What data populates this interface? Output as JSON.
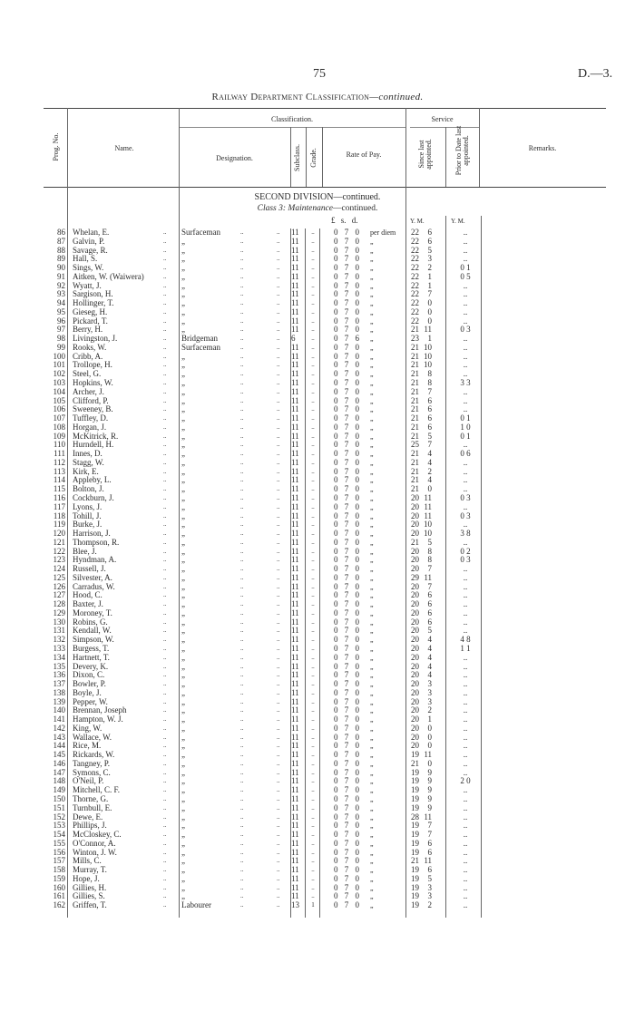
{
  "page": {
    "number": "75",
    "reference": "D.—3."
  },
  "title": {
    "main": "Railway Department Classification",
    "suffix": "—continued."
  },
  "headers": {
    "prog_no": "Prog. No.",
    "name": "Name.",
    "classification": "Classification.",
    "designation": "Designation.",
    "subclass": "Subclass.",
    "grade": "Grade.",
    "rate_of_pay": "Rate of Pay.",
    "service": "Service",
    "since_last": "Since last appointed.",
    "prior": "Prior to Date last appointed.",
    "remarks": "Remarks."
  },
  "section": {
    "division": "SECOND DIVISION—continued.",
    "class_label": "Class 3:",
    "class_name": "Maintenance",
    "class_suffix": "—continued."
  },
  "units": {
    "lsd": "£ s. d.",
    "since_ym": "Y. M.",
    "prior_ym": "Y. M."
  },
  "leader": "..",
  "rows": [
    [
      "86",
      "Whelan, E.",
      "Surfaceman",
      "11",
      "..",
      "0 7 0",
      "per diem",
      "22",
      "6",
      ".."
    ],
    [
      "87",
      "Galvin, P.",
      "„",
      "11",
      "..",
      "0 7 0",
      "„",
      "22",
      "6",
      ".."
    ],
    [
      "88",
      "Savage, R.",
      "„",
      "11",
      "..",
      "0 7 0",
      "„",
      "22",
      "5",
      ".."
    ],
    [
      "89",
      "Hall, S.",
      "„",
      "11",
      "..",
      "0 7 0",
      "„",
      "22",
      "3",
      ".."
    ],
    [
      "90",
      "Sings, W.",
      "„",
      "11",
      "..",
      "0 7 0",
      "„",
      "22",
      "2",
      "0 1"
    ],
    [
      "91",
      "Aitken, W. (Waiwera)",
      "„",
      "11",
      "..",
      "0 7 0",
      "„",
      "22",
      "1",
      "0 5"
    ],
    [
      "92",
      "Wyatt, J.",
      "„",
      "11",
      "..",
      "0 7 0",
      "„",
      "22",
      "1",
      ".."
    ],
    [
      "93",
      "Sargison, H.",
      "„",
      "11",
      "..",
      "0 7 0",
      "„",
      "22",
      "7",
      ".."
    ],
    [
      "94",
      "Hollinger, T.",
      "„",
      "11",
      "..",
      "0 7 0",
      "„",
      "22",
      "0",
      ".."
    ],
    [
      "95",
      "Gieseg, H.",
      "„",
      "11",
      "..",
      "0 7 0",
      "„",
      "22",
      "0",
      ".."
    ],
    [
      "96",
      "Pickard, T.",
      "„",
      "11",
      "..",
      "0 7 0",
      "„",
      "22",
      "0",
      ".."
    ],
    [
      "97",
      "Berry, H.",
      "„",
      "11",
      "..",
      "0 7 0",
      "„",
      "21",
      "11",
      "0 3"
    ],
    [
      "98",
      "Livingston, J.",
      "Bridgeman",
      "6",
      "..",
      "0 7 6",
      "„",
      "23",
      "1",
      ".."
    ],
    [
      "99",
      "Rooks, W.",
      "Surfaceman",
      "11",
      "..",
      "0 7 0",
      "„",
      "21",
      "10",
      ".."
    ],
    [
      "100",
      "Cribb, A.",
      "„",
      "11",
      "..",
      "0 7 0",
      "„",
      "21",
      "10",
      ".."
    ],
    [
      "101",
      "Trollope, H.",
      "„",
      "11",
      "..",
      "0 7 0",
      "„",
      "21",
      "10",
      ".."
    ],
    [
      "102",
      "Steel, G.",
      "„",
      "11",
      "..",
      "0 7 0",
      "„",
      "21",
      "8",
      ".."
    ],
    [
      "103",
      "Hopkins, W.",
      "„",
      "11",
      "..",
      "0 7 0",
      "„",
      "21",
      "8",
      "3 3"
    ],
    [
      "104",
      "Archer, J.",
      "„",
      "11",
      "..",
      "0 7 0",
      "„",
      "21",
      "7",
      ".."
    ],
    [
      "105",
      "Clifford, P.",
      "„",
      "11",
      "..",
      "0 7 0",
      "„",
      "21",
      "6",
      ".."
    ],
    [
      "106",
      "Sweeney, B.",
      "„",
      "11",
      "..",
      "0 7 0",
      "„",
      "21",
      "6",
      ".."
    ],
    [
      "107",
      "Tuffley, D.",
      "„",
      "11",
      "..",
      "0 7 0",
      "„",
      "21",
      "6",
      "0 1"
    ],
    [
      "108",
      "Horgan, J.",
      "„",
      "11",
      "..",
      "0 7 0",
      "„",
      "21",
      "6",
      "1 0"
    ],
    [
      "109",
      "McKitrick, R.",
      "„",
      "11",
      "..",
      "0 7 0",
      "„",
      "21",
      "5",
      "0 1"
    ],
    [
      "110",
      "Hurndell, H.",
      "„",
      "11",
      "..",
      "0 7 0",
      "„",
      "25",
      "7",
      ".."
    ],
    [
      "111",
      "Innes, D.",
      "„",
      "11",
      "..",
      "0 7 0",
      "„",
      "21",
      "4",
      "0 6"
    ],
    [
      "112",
      "Stagg, W.",
      "„",
      "11",
      "..",
      "0 7 0",
      "„",
      "21",
      "4",
      ".."
    ],
    [
      "113",
      "Kirk, E.",
      "„",
      "11",
      "..",
      "0 7 0",
      "„",
      "21",
      "2",
      ".."
    ],
    [
      "114",
      "Appleby, L.",
      "„",
      "11",
      "..",
      "0 7 0",
      "„",
      "21",
      "4",
      ".."
    ],
    [
      "115",
      "Bolton, J.",
      "„",
      "11",
      "..",
      "0 7 0",
      "„",
      "21",
      "0",
      ".."
    ],
    [
      "116",
      "Cockburn, J.",
      "„",
      "11",
      "..",
      "0 7 0",
      "„",
      "20",
      "11",
      "0 3"
    ],
    [
      "117",
      "Lyons, J.",
      "„",
      "11",
      "..",
      "0 7 0",
      "„",
      "20",
      "11",
      ".."
    ],
    [
      "118",
      "Tohill, J.",
      "„",
      "11",
      "..",
      "0 7 0",
      "„",
      "20",
      "11",
      "0 3"
    ],
    [
      "119",
      "Burke, J.",
      "„",
      "11",
      "..",
      "0 7 0",
      "„",
      "20",
      "10",
      ".."
    ],
    [
      "120",
      "Harrison, J.",
      "„",
      "11",
      "..",
      "0 7 0",
      "„",
      "20",
      "10",
      "3 8"
    ],
    [
      "121",
      "Thompson, R.",
      "„",
      "11",
      "..",
      "0 7 0",
      "„",
      "21",
      "5",
      ".."
    ],
    [
      "122",
      "Blee, J.",
      "„",
      "11",
      "..",
      "0 7 0",
      "„",
      "20",
      "8",
      "0 2"
    ],
    [
      "123",
      "Hyndman, A.",
      "„",
      "11",
      "..",
      "0 7 0",
      "„",
      "20",
      "8",
      "0 3"
    ],
    [
      "124",
      "Russell, J.",
      "„",
      "11",
      "..",
      "0 7 0",
      "„",
      "20",
      "7",
      ".."
    ],
    [
      "125",
      "Silvester, A.",
      "„",
      "11",
      "..",
      "0 7 0",
      "„",
      "29",
      "11",
      ".."
    ],
    [
      "126",
      "Carradus, W.",
      "„",
      "11",
      "..",
      "0 7 0",
      "„",
      "20",
      "7",
      ".."
    ],
    [
      "127",
      "Hood, C.",
      "„",
      "11",
      "..",
      "0 7 0",
      "„",
      "20",
      "6",
      ".."
    ],
    [
      "128",
      "Baxter, J.",
      "„",
      "11",
      "..",
      "0 7 0",
      "„",
      "20",
      "6",
      ".."
    ],
    [
      "129",
      "Moroney, T.",
      "„",
      "11",
      "..",
      "0 7 0",
      "„",
      "20",
      "6",
      ".."
    ],
    [
      "130",
      "Robins, G.",
      "„",
      "11",
      "..",
      "0 7 0",
      "„",
      "20",
      "6",
      ".."
    ],
    [
      "131",
      "Kendall, W.",
      "„",
      "11",
      "..",
      "0 7 0",
      "„",
      "20",
      "5",
      ".."
    ],
    [
      "132",
      "Simpson, W.",
      "„",
      "11",
      "..",
      "0 7 0",
      "„",
      "20",
      "4",
      "4 8"
    ],
    [
      "133",
      "Burgess, T.",
      "„",
      "11",
      "..",
      "0 7 0",
      "„",
      "20",
      "4",
      "1 1"
    ],
    [
      "134",
      "Hartnett, T.",
      "„",
      "11",
      "..",
      "0 7 0",
      "„",
      "20",
      "4",
      ".."
    ],
    [
      "135",
      "Devery, K.",
      "„",
      "11",
      "..",
      "0 7 0",
      "„",
      "20",
      "4",
      ".."
    ],
    [
      "136",
      "Dixon, C.",
      "„",
      "11",
      "..",
      "0 7 0",
      "„",
      "20",
      "4",
      ".."
    ],
    [
      "137",
      "Bowler, P.",
      "„",
      "11",
      "..",
      "0 7 0",
      "„",
      "20",
      "3",
      ".."
    ],
    [
      "138",
      "Boyle, J.",
      "„",
      "11",
      "..",
      "0 7 0",
      "„",
      "20",
      "3",
      ".."
    ],
    [
      "139",
      "Pepper, W.",
      "„",
      "11",
      "..",
      "0 7 0",
      "„",
      "20",
      "3",
      ".."
    ],
    [
      "140",
      "Brennan, Joseph",
      "„",
      "11",
      "..",
      "0 7 0",
      "„",
      "20",
      "2",
      ".."
    ],
    [
      "141",
      "Hampton, W. J.",
      "„",
      "11",
      "..",
      "0 7 0",
      "„",
      "20",
      "1",
      ".."
    ],
    [
      "142",
      "King, W.",
      "„",
      "11",
      "..",
      "0 7 0",
      "„",
      "20",
      "0",
      ".."
    ],
    [
      "143",
      "Wallace, W.",
      "„",
      "11",
      "..",
      "0 7 0",
      "„",
      "20",
      "0",
      ".."
    ],
    [
      "144",
      "Rice, M.",
      "„",
      "11",
      "..",
      "0 7 0",
      "„",
      "20",
      "0",
      ".."
    ],
    [
      "145",
      "Rickards, W.",
      "„",
      "11",
      "..",
      "0 7 0",
      "„",
      "19",
      "11",
      ".."
    ],
    [
      "146",
      "Tangney, P.",
      "„",
      "11",
      "..",
      "0 7 0",
      "„",
      "21",
      "0",
      ".."
    ],
    [
      "147",
      "Symons, C.",
      "„",
      "11",
      "..",
      "0 7 0",
      "„",
      "19",
      "9",
      ".."
    ],
    [
      "148",
      "O'Neil, P.",
      "„",
      "11",
      "..",
      "0 7 0",
      "„",
      "19",
      "9",
      "2 0"
    ],
    [
      "149",
      "Mitchell, C. F.",
      "„",
      "11",
      "..",
      "0 7 0",
      "„",
      "19",
      "9",
      ".."
    ],
    [
      "150",
      "Thorne, G.",
      "„",
      "11",
      "..",
      "0 7 0",
      "„",
      "19",
      "9",
      ".."
    ],
    [
      "151",
      "Turnbull, E.",
      "„",
      "11",
      "..",
      "0 7 0",
      "„",
      "19",
      "9",
      ".."
    ],
    [
      "152",
      "Dewe, E.",
      "„",
      "11",
      "..",
      "0 7 0",
      "„",
      "28",
      "11",
      ".."
    ],
    [
      "153",
      "Phillips, J.",
      "„",
      "11",
      "..",
      "0 7 0",
      "„",
      "19",
      "7",
      ".."
    ],
    [
      "154",
      "McCloskey, C.",
      "„",
      "11",
      "..",
      "0 7 0",
      "„",
      "19",
      "7",
      ".."
    ],
    [
      "155",
      "O'Connor, A.",
      "„",
      "11",
      "..",
      "0 7 0",
      "„",
      "19",
      "6",
      ".."
    ],
    [
      "156",
      "Winton, J. W.",
      "„",
      "11",
      "..",
      "0 7 0",
      "„",
      "19",
      "6",
      ".."
    ],
    [
      "157",
      "Mills, C.",
      "„",
      "11",
      "..",
      "0 7 0",
      "„",
      "21",
      "11",
      ".."
    ],
    [
      "158",
      "Murray, T.",
      "„",
      "11",
      "..",
      "0 7 0",
      "„",
      "19",
      "6",
      ".."
    ],
    [
      "159",
      "Hope, J.",
      "„",
      "11",
      "..",
      "0 7 0",
      "„",
      "19",
      "5",
      ".."
    ],
    [
      "160",
      "Gillies, H.",
      "„",
      "11",
      "..",
      "0 7 0",
      "„",
      "19",
      "3",
      ".."
    ],
    [
      "161",
      "Gillies, S.",
      "„",
      "11",
      "..",
      "0 7 0",
      "„",
      "19",
      "3",
      ".."
    ],
    [
      "162",
      "Griffen, T.",
      "Labourer",
      "13",
      "1",
      "0 7 0",
      "„",
      "19",
      "2",
      ".."
    ]
  ]
}
